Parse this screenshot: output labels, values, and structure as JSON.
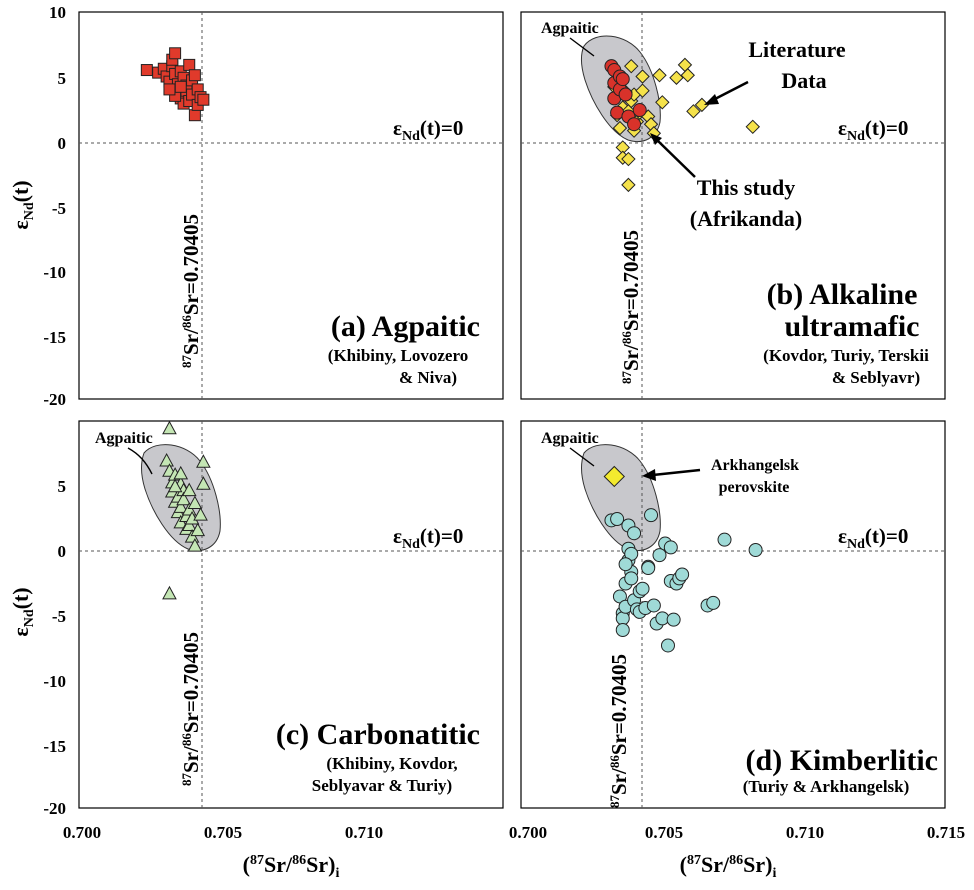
{
  "chart_data": [
    {
      "panel": "a",
      "type": "scatter",
      "title": "(a) Agpaitic",
      "subtitle": [
        "(Khibiny, Lovozero",
        "& Niva)"
      ],
      "ylabel": "εNd(t)",
      "xlabel": "",
      "xlim": [
        0.7,
        0.715
      ],
      "ylim": [
        -20,
        10
      ],
      "xticks": [],
      "yticks": [
        "10",
        "5",
        "0",
        "-5",
        "-10",
        "-15",
        "-20"
      ],
      "ref_x_label": "87Sr/86Sr=0.70405",
      "ref_y_label": "εNd(t)=0",
      "series": [
        {
          "marker": "square",
          "color": "#e03a2b",
          "points": [
            [
              0.7024,
              5.5
            ],
            [
              0.7028,
              5.3
            ],
            [
              0.703,
              5.6
            ],
            [
              0.7031,
              5.0
            ],
            [
              0.7032,
              4.6
            ],
            [
              0.7033,
              5.8
            ],
            [
              0.7033,
              6.3
            ],
            [
              0.7034,
              6.8
            ],
            [
              0.7034,
              5.2
            ],
            [
              0.7035,
              4.4
            ],
            [
              0.7035,
              3.8
            ],
            [
              0.7036,
              3.3
            ],
            [
              0.7036,
              5.4
            ],
            [
              0.7037,
              2.9
            ],
            [
              0.7037,
              4.9
            ],
            [
              0.7038,
              3.9
            ],
            [
              0.7038,
              4.3
            ],
            [
              0.7039,
              3.1
            ],
            [
              0.7039,
              5.9
            ],
            [
              0.704,
              4.7
            ],
            [
              0.704,
              3.6
            ],
            [
              0.7041,
              2.0
            ],
            [
              0.7041,
              5.1
            ],
            [
              0.7042,
              4.0
            ],
            [
              0.7042,
              2.8
            ],
            [
              0.7043,
              3.4
            ],
            [
              0.7044,
              3.2
            ],
            [
              0.7034,
              3.5
            ],
            [
              0.7032,
              4.0
            ],
            [
              0.7036,
              4.2
            ]
          ]
        }
      ]
    },
    {
      "panel": "b",
      "type": "scatter",
      "title": [
        "(b) Alkaline",
        "ultramafic"
      ],
      "subtitle": [
        "(Kovdor, Turiy, Terskii",
        "& Seblyavr)"
      ],
      "xlabel": "",
      "xlim": [
        0.7,
        0.715
      ],
      "ylim": [
        -20,
        10
      ],
      "ref_x_label": "87Sr/86Sr=0.70405",
      "ref_y_label": "εNd(t)=0",
      "field_label": "Agpaitic",
      "annotations": [
        [
          "Literature",
          "Data"
        ],
        [
          "This study",
          "(Afrikanda)"
        ]
      ],
      "series": [
        {
          "name": "Literature Data",
          "marker": "diamond",
          "color": "#f5e24a",
          "points": [
            [
              0.7033,
              4.2
            ],
            [
              0.7034,
              2.0
            ],
            [
              0.7035,
              1.0
            ],
            [
              0.7036,
              2.6
            ],
            [
              0.7036,
              -0.5
            ],
            [
              0.7036,
              -1.3
            ],
            [
              0.7038,
              -1.4
            ],
            [
              0.7038,
              -3.4
            ],
            [
              0.7038,
              2.3
            ],
            [
              0.7039,
              3.1
            ],
            [
              0.7039,
              5.8
            ],
            [
              0.704,
              3.6
            ],
            [
              0.704,
              0.8
            ],
            [
              0.7041,
              1.5
            ],
            [
              0.7042,
              2.2
            ],
            [
              0.7043,
              3.9
            ],
            [
              0.7045,
              1.9
            ],
            [
              0.7046,
              1.3
            ],
            [
              0.7047,
              0.6
            ],
            [
              0.7049,
              5.1
            ],
            [
              0.705,
              3.0
            ],
            [
              0.7055,
              4.9
            ],
            [
              0.7058,
              5.9
            ],
            [
              0.7059,
              5.1
            ],
            [
              0.7061,
              2.3
            ],
            [
              0.7064,
              2.8
            ],
            [
              0.7082,
              1.1
            ],
            [
              0.7037,
              3.8
            ],
            [
              0.7043,
              5.0
            ]
          ]
        },
        {
          "name": "This study (Afrikanda)",
          "marker": "circle",
          "color": "#d8322a",
          "points": [
            [
              0.7032,
              5.8
            ],
            [
              0.7033,
              5.5
            ],
            [
              0.7033,
              4.5
            ],
            [
              0.7033,
              3.3
            ],
            [
              0.7034,
              2.2
            ],
            [
              0.7035,
              4.0
            ],
            [
              0.7035,
              5.0
            ],
            [
              0.7036,
              4.8
            ],
            [
              0.7037,
              3.6
            ],
            [
              0.7038,
              1.9
            ],
            [
              0.704,
              1.3
            ],
            [
              0.7042,
              2.4
            ]
          ]
        }
      ]
    },
    {
      "panel": "c",
      "type": "scatter",
      "title": "(c) Carbonatitic",
      "subtitle": [
        "(Khibiny, Kovdor,",
        "Seblyavar & Turiy)"
      ],
      "ylabel": "εNd(t)",
      "xlabel": "(87Sr/86Sr)i",
      "xlim": [
        0.7,
        0.715
      ],
      "ylim": [
        -20,
        10
      ],
      "xticks": [
        "0.700",
        "0.705",
        "0.710"
      ],
      "yticks": [
        "5",
        "0",
        "-5",
        "-10",
        "-15",
        "-20"
      ],
      "ref_x_label": "87Sr/86Sr=0.70405",
      "ref_y_label": "εNd(t)=0",
      "field_label": "Agpaitic",
      "series": [
        {
          "marker": "triangle",
          "color": "#c4e6b4",
          "points": [
            [
              0.7032,
              9.4
            ],
            [
              0.7032,
              -3.4
            ],
            [
              0.7031,
              6.9
            ],
            [
              0.7032,
              6.1
            ],
            [
              0.7033,
              5.2
            ],
            [
              0.7033,
              4.5
            ],
            [
              0.7034,
              3.7
            ],
            [
              0.7034,
              5.8
            ],
            [
              0.7035,
              4.1
            ],
            [
              0.7035,
              2.9
            ],
            [
              0.7036,
              5.1
            ],
            [
              0.7036,
              3.3
            ],
            [
              0.7036,
              2.1
            ],
            [
              0.7037,
              4.6
            ],
            [
              0.7037,
              3.9
            ],
            [
              0.7038,
              1.6
            ],
            [
              0.7038,
              2.6
            ],
            [
              0.7039,
              3.1
            ],
            [
              0.7039,
              1.9
            ],
            [
              0.704,
              1.0
            ],
            [
              0.704,
              2.4
            ],
            [
              0.7041,
              3.6
            ],
            [
              0.7041,
              0.3
            ],
            [
              0.7042,
              1.5
            ],
            [
              0.7043,
              2.7
            ],
            [
              0.7044,
              6.8
            ],
            [
              0.7044,
              5.1
            ],
            [
              0.7034,
              4.9
            ],
            [
              0.7036,
              5.9
            ],
            [
              0.7039,
              4.6
            ]
          ]
        }
      ]
    },
    {
      "panel": "d",
      "type": "scatter",
      "title": "(d) Kimberlitic",
      "subtitle": [
        "(Turiy & Arkhangelsk)"
      ],
      "xlabel": "(87Sr/86Sr)i",
      "xlim": [
        0.7,
        0.715
      ],
      "ylim": [
        -20,
        10
      ],
      "xticks": [
        "0.700",
        "0.705",
        "0.710",
        "0.715"
      ],
      "ref_x_label": "87Sr/86Sr=0.70405",
      "ref_y_label": "εNd(t)=0",
      "field_label": "Agpaitic",
      "annotations": [
        [
          "Arkhangelsk",
          "perovskite"
        ]
      ],
      "series": [
        {
          "name": "Arkhangelsk perovskite",
          "marker": "diamond-large",
          "color": "#f3ea2e",
          "points": [
            [
              0.7033,
              5.7
            ]
          ]
        },
        {
          "marker": "circle",
          "color": "#9fdad7",
          "points": [
            [
              0.7032,
              2.3
            ],
            [
              0.7034,
              2.4
            ],
            [
              0.7035,
              -3.6
            ],
            [
              0.7036,
              -4.9
            ],
            [
              0.7036,
              -5.3
            ],
            [
              0.7036,
              -6.2
            ],
            [
              0.7037,
              -4.4
            ],
            [
              0.7037,
              -2.6
            ],
            [
              0.7038,
              1.9
            ],
            [
              0.7038,
              0.1
            ],
            [
              0.7038,
              -0.8
            ],
            [
              0.7039,
              -1.7
            ],
            [
              0.7039,
              -2.2
            ],
            [
              0.704,
              1.3
            ],
            [
              0.704,
              -3.9
            ],
            [
              0.7041,
              -4.6
            ],
            [
              0.7042,
              -3.2
            ],
            [
              0.7042,
              -4.8
            ],
            [
              0.7043,
              -3.0
            ],
            [
              0.7044,
              -4.5
            ],
            [
              0.7045,
              -1.3
            ],
            [
              0.7045,
              -1.4
            ],
            [
              0.7046,
              2.7
            ],
            [
              0.7047,
              -4.3
            ],
            [
              0.7048,
              -5.7
            ],
            [
              0.7049,
              -0.4
            ],
            [
              0.705,
              -5.3
            ],
            [
              0.7051,
              0.5
            ],
            [
              0.7052,
              -7.4
            ],
            [
              0.7053,
              0.2
            ],
            [
              0.7053,
              -2.4
            ],
            [
              0.7054,
              -5.4
            ],
            [
              0.7055,
              -2.6
            ],
            [
              0.7056,
              -2.2
            ],
            [
              0.7057,
              -1.9
            ],
            [
              0.7066,
              -4.3
            ],
            [
              0.7068,
              -4.1
            ],
            [
              0.7072,
              0.8
            ],
            [
              0.7083,
              0.0
            ],
            [
              0.7039,
              -0.3
            ],
            [
              0.7037,
              -1.1
            ]
          ]
        }
      ]
    }
  ]
}
